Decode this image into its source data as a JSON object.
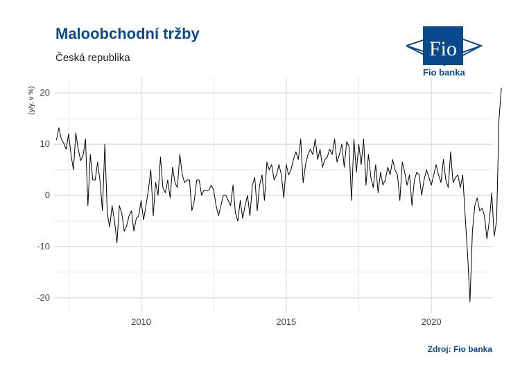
{
  "header": {
    "title": "Maloobchodní tržby",
    "subtitle": "Česká republika",
    "source": "Zdroj: Fio banka"
  },
  "logo": {
    "mark_text": "Fio",
    "name": "Fio banka",
    "color": "#0a4a8a"
  },
  "chart_data": {
    "type": "line",
    "ylabel": "(y/y, v %)",
    "xlabel": "",
    "xlim": [
      2007.0,
      2022.1
    ],
    "ylim": [
      -23,
      23
    ],
    "x_ticks": [
      2010,
      2015,
      2020
    ],
    "y_ticks": [
      -20,
      -10,
      0,
      10,
      20
    ],
    "grid": true,
    "line_color": "#000000",
    "series": [
      {
        "x_start": 2007.083,
        "x_step": 0.08333,
        "values": [
          10.8,
          13.2,
          11.0,
          10.2,
          9.0,
          12.0,
          8.0,
          5.0,
          12.2,
          9.0,
          6.8,
          7.8,
          11.0,
          -2.0,
          8.0,
          3.0,
          3.0,
          6.5,
          2.8,
          -3.0,
          10.0,
          -3.5,
          -6.2,
          -2.0,
          -5.0,
          -9.3,
          -2.0,
          -3.5,
          -7.0,
          -6.0,
          -4.0,
          -3.0,
          -7.0,
          -4.5,
          -4.0,
          -1.0,
          -4.8,
          -2.0,
          1.0,
          5.0,
          -4.0,
          2.5,
          0.0,
          7.5,
          1.5,
          0.5,
          3.0,
          -0.5,
          5.5,
          2.5,
          1.5,
          8.0,
          4.0,
          2.5,
          3.0,
          3.0,
          -3.0,
          -1.0,
          3.0,
          3.0,
          0.0,
          1.0,
          1.0,
          1.0,
          2.0,
          1.0,
          -2.0,
          -4.0,
          -2.0,
          0.0,
          0.0,
          -1.0,
          -2.0,
          2.0,
          -3.5,
          -5.0,
          -1.0,
          -4.5,
          -2.0,
          0.0,
          -4.0,
          2.0,
          3.5,
          -3.0,
          2.0,
          4.0,
          -1.0,
          6.5,
          5.0,
          6.0,
          3.0,
          4.0,
          6.0,
          4.0,
          -0.5,
          6.0,
          4.0,
          5.0,
          7.0,
          8.5,
          7.0,
          11.0,
          2.5,
          6.0,
          8.0,
          9.0,
          8.0,
          11.0,
          7.0,
          9.0,
          5.5,
          7.0,
          7.5,
          9.0,
          8.0,
          11.0,
          6.5,
          8.0,
          10.0,
          5.5,
          10.5,
          9.5,
          -1.0,
          11.0,
          4.5,
          10.0,
          6.0,
          11.0,
          2.0,
          8.0,
          3.5,
          1.5,
          6.0,
          0.5,
          4.5,
          2.0,
          3.0,
          5.5,
          4.0,
          7.0,
          5.0,
          4.0,
          -1.0,
          6.5,
          4.5,
          2.0,
          4.0,
          -2.0,
          3.0,
          4.5,
          4.0,
          0.0,
          3.0,
          5.0,
          3.5,
          2.0,
          4.0,
          6.0,
          4.0,
          2.5,
          7.0,
          3.0,
          1.5,
          8.5,
          2.5,
          3.5,
          4.0,
          1.5,
          4.0,
          -4.0,
          -11.5,
          -20.8,
          -7.0,
          -2.0,
          -0.5,
          -3.0,
          -2.5,
          -4.0,
          -8.5,
          -5.0,
          0.5,
          -8.0,
          -5.0,
          15.0,
          21.0
        ]
      }
    ]
  }
}
